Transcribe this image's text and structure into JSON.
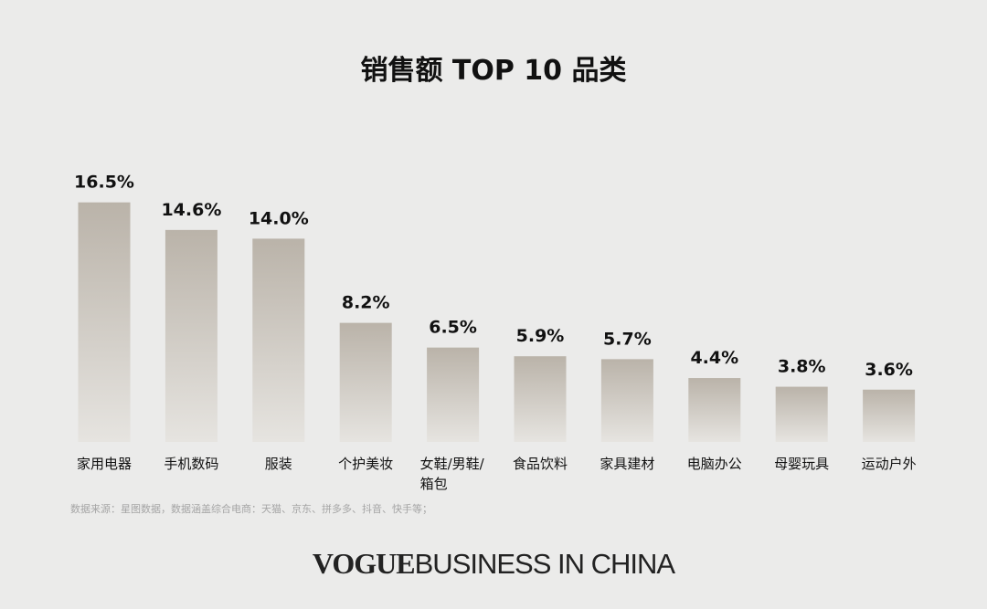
{
  "chart_data": {
    "type": "bar",
    "title": "销售额 TOP 10 品类",
    "categories": [
      "家用电器",
      "手机数码",
      "服装",
      "个护美妆",
      "女鞋/男鞋/箱包",
      "食品饮料",
      "家具建材",
      "电脑办公",
      "母婴玩具",
      "运动户外"
    ],
    "values": [
      16.5,
      14.6,
      14.0,
      8.2,
      6.5,
      5.9,
      5.7,
      4.4,
      3.8,
      3.6
    ],
    "value_labels": [
      "16.5%",
      "14.6%",
      "14.0%",
      "8.2%",
      "6.5%",
      "5.9%",
      "5.7%",
      "4.4%",
      "3.8%",
      "3.6%"
    ],
    "color": [
      "#bab3a9",
      "#e6e4e0"
    ],
    "note": "数据来源：星图数据，数据涵盖综合电商：天猫、京东、拼多多、抖音、快手等；"
  },
  "logo": {
    "brand": "VOGUE",
    "text": "BUSINESS IN CHINA"
  }
}
